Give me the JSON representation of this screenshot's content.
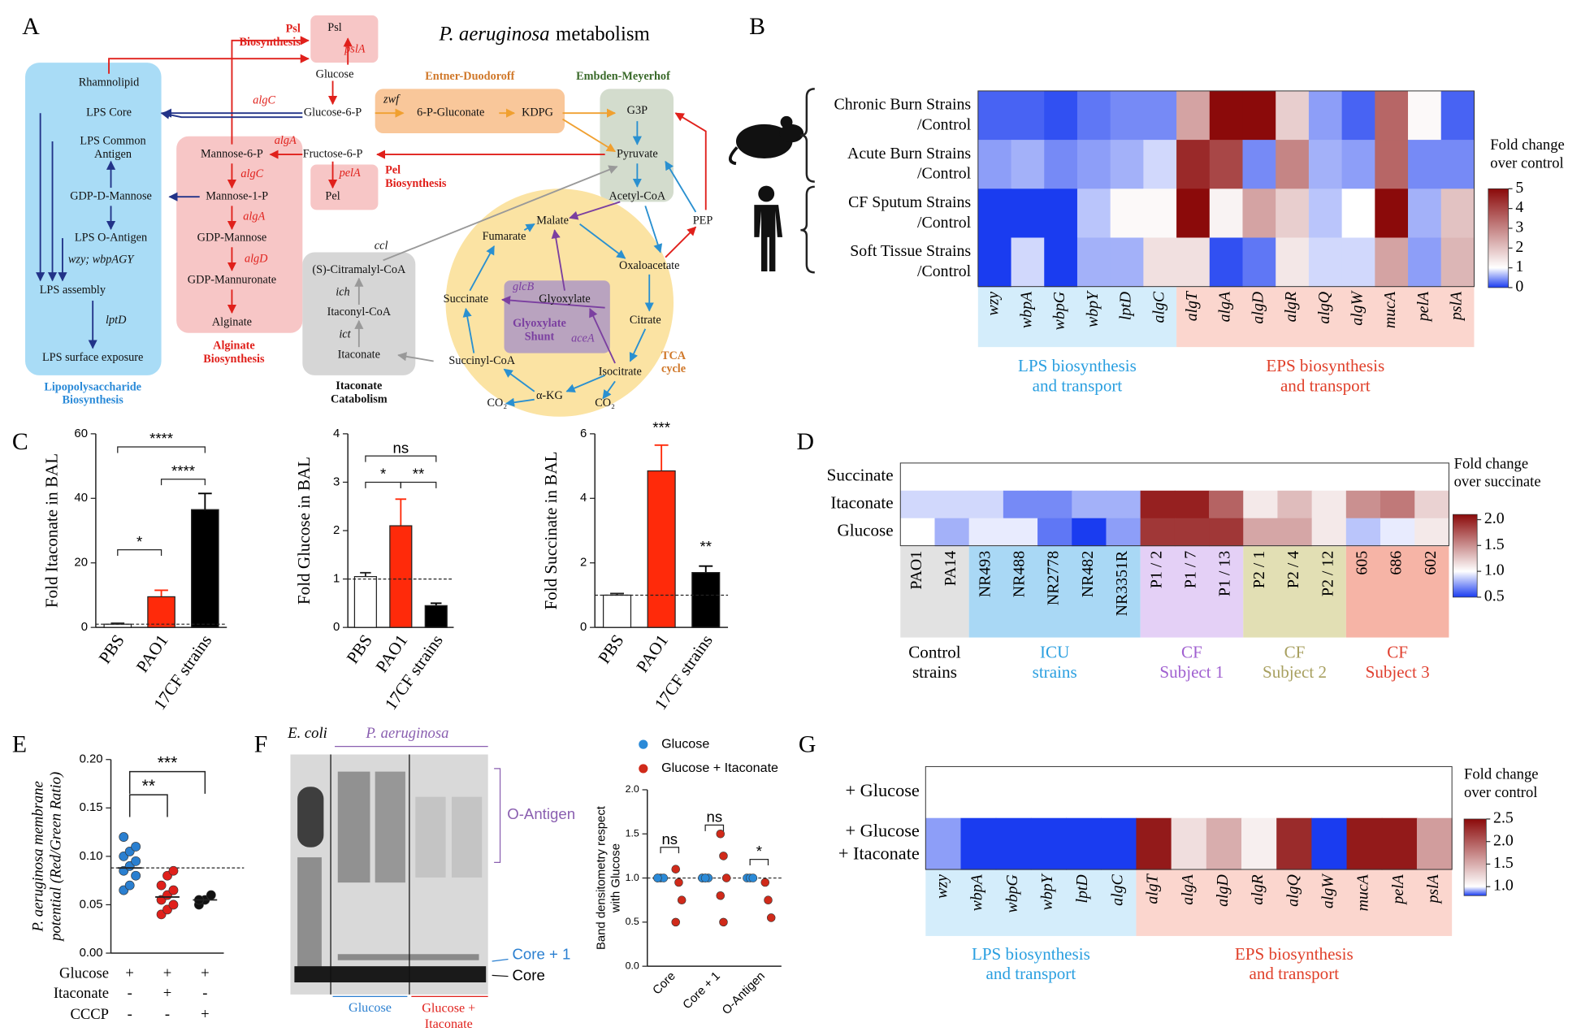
{
  "panel_labels": [
    "A",
    "B",
    "C",
    "D",
    "E",
    "F",
    "G"
  ],
  "diagram": {
    "title": [
      "P. aeruginosa",
      "metabolism"
    ],
    "labels": [
      "Psl",
      "pslA",
      [
        "Psl",
        "Biosynthesis"
      ],
      "Glucose",
      "Glucose-6-P",
      "zwf",
      "6-P-Gluconate",
      "KDPG",
      "G3P",
      "Pyruvate",
      "Acetyl-CoA",
      "PEP",
      "Fructose-6-P",
      "pelA",
      "Pel",
      [
        "Pel",
        "Biosynthesis"
      ],
      "Entner-Duodoroff",
      "Embden-Meyerhof",
      "algC",
      "algA",
      "Rhamnolipid",
      "LPS Core",
      [
        "LPS Common",
        "Antigen"
      ],
      "GDP-D-Mannose",
      "LPS O-Antigen",
      "wzy; wbpAGY",
      "LPS assembly",
      "lptD",
      "LPS surface exposure",
      [
        "Lipopolysaccharide",
        "Biosynthesis"
      ],
      "Mannose-6-P",
      "algC",
      "Mannose-1-P",
      "algA",
      "GDP-Mannose",
      "algD",
      "GDP-Mannuronate",
      "Alginate",
      [
        "Alginate",
        "Biosynthesis"
      ],
      "Malate",
      "Fumarate",
      "Oxaloacetate",
      "Succinate",
      "glcB",
      "Glyoxylate",
      [
        "Glyoxylate",
        "Shunt"
      ],
      "aceA",
      "Citrate",
      "Isocitrate",
      "Succinyl-CoA",
      "α-KG",
      "CO₂",
      "CO₂",
      [
        "TCA",
        "cycle"
      ],
      "ccl",
      "(S)-Citramalyl-CoA",
      "ich",
      "Itaconyl-CoA",
      "ict",
      "Itaconate",
      [
        "Itaconate",
        "Catabolism"
      ]
    ]
  },
  "gel": {
    "title_left": "E. coli",
    "title_right": "P. aeruginosa",
    "band_labels": [
      "O-Antigen",
      "Core + 1",
      "Core"
    ],
    "lanes": [
      "Glucose",
      [
        "Glucose +",
        "Itaconate"
      ]
    ]
  },
  "chart_data": [
    {
      "type": "heatmap",
      "rows": [
        [
          "Chronic Burn Strains",
          "/Control"
        ],
        [
          "Acute Burn Strains",
          "/Control"
        ],
        [
          "CF Sputum Strains",
          "/Control"
        ],
        [
          "Soft Tissue Strains",
          "/Control"
        ]
      ],
      "groups": [
        {
          "name": [
            "LPS biosynthesis",
            "and transport"
          ],
          "color": "#d4edfb",
          "text_color": "#2a9fe0",
          "columns": [
            "wzy",
            "wbpA",
            "wbpG",
            "wbpY",
            "lptD",
            "algC"
          ]
        },
        {
          "name": [
            "EPS biosynthesis",
            "and transport"
          ],
          "color": "#fbd6ce",
          "text_color": "#e0402a",
          "columns": [
            "algT",
            "algA",
            "algD",
            "algR",
            "algQ",
            "algW",
            "mucA",
            "pelA",
            "pslA"
          ]
        }
      ],
      "italic_labels": true,
      "values": [
        [
          0.2,
          0.2,
          0.1,
          0.3,
          0.4,
          0.4,
          2.5,
          5,
          5,
          1.8,
          0.5,
          0.2,
          3.5,
          1.1,
          0.2
        ],
        [
          0.5,
          0.6,
          0.4,
          0.5,
          0.6,
          0.8,
          4.5,
          4,
          0.4,
          3,
          0.6,
          0.5,
          3.5,
          0.4,
          0.4
        ],
        [
          0,
          0,
          0,
          0.7,
          1.1,
          1.1,
          5,
          1.2,
          2.5,
          1.8,
          0.7,
          1,
          5,
          0.6,
          2
        ],
        [
          0,
          0.8,
          0,
          0.6,
          0.6,
          1.5,
          1.5,
          0.1,
          0.3,
          1.4,
          0.8,
          0.8,
          2.5,
          0.5,
          2.2
        ]
      ],
      "colormap": [
        "#1a3cf0",
        "#ffffff",
        "#8b0a0a"
      ],
      "clim": [
        0,
        5
      ],
      "center": 1,
      "colorbar_ticks": [
        0,
        1,
        2,
        3,
        4,
        5
      ],
      "colorbar_title": [
        "Fold change",
        "over control"
      ]
    },
    {
      "type": "bar",
      "ylabel": "Fold Itaconate in BAL",
      "categories": [
        "PBS",
        "PAO1",
        "17CF strains"
      ],
      "values": [
        1,
        9.5,
        36.5
      ],
      "errors": [
        0.3,
        2,
        5
      ],
      "colors": [
        "#ffffff",
        "#ff2a0a",
        "#000000"
      ],
      "ylim": [
        0,
        60
      ],
      "yticks": [
        0,
        20,
        40,
        60
      ],
      "hline": 1,
      "annotations": [
        "*",
        "****",
        "****"
      ]
    },
    {
      "type": "bar",
      "ylabel": "Fold Glucose in BAL",
      "categories": [
        "PBS",
        "PAO1",
        "17CF strains"
      ],
      "values": [
        1.05,
        2.1,
        0.45
      ],
      "errors": [
        0.08,
        0.55,
        0.05
      ],
      "colors": [
        "#ffffff",
        "#ff2a0a",
        "#000000"
      ],
      "ylim": [
        0,
        4
      ],
      "yticks": [
        0,
        1,
        2,
        3,
        4
      ],
      "hline": 1,
      "annotations": [
        "ns",
        "*",
        "**"
      ]
    },
    {
      "type": "bar",
      "ylabel": "Fold Succinate in BAL",
      "categories": [
        "PBS",
        "PAO1",
        "17CF strains"
      ],
      "values": [
        1,
        4.85,
        1.7
      ],
      "errors": [
        0.05,
        0.8,
        0.2
      ],
      "colors": [
        "#ffffff",
        "#ff2a0a",
        "#000000"
      ],
      "ylim": [
        0,
        6
      ],
      "yticks": [
        0,
        2,
        4,
        6
      ],
      "hline": 1,
      "annotations": [
        "***",
        "**"
      ]
    },
    {
      "type": "heatmap",
      "rows": [
        "Succinate",
        "Itaconate",
        "Glucose"
      ],
      "groups": [
        {
          "name": [
            "Control",
            "strains"
          ],
          "color": "#e2e2e2",
          "text_color": "#000000",
          "columns": [
            "PAO1",
            "PA14"
          ]
        },
        {
          "name": [
            "ICU",
            "strains"
          ],
          "color": "#a9d8f5",
          "text_color": "#2a9fe0",
          "columns": [
            "NR493",
            "NR488",
            "NR2778",
            "NR482",
            "NR3351R"
          ]
        },
        {
          "name": [
            "CF",
            "Subject 1"
          ],
          "color": "#e4d0f6",
          "text_color": "#a060d0",
          "columns": [
            "P1 / 2",
            "P1 / 7",
            "P1 / 13"
          ]
        },
        {
          "name": [
            "CF",
            "Subject 2"
          ],
          "color": "#e2dfb4",
          "text_color": "#a8a060",
          "columns": [
            "P2 / 1",
            "P2 / 4",
            "P2 / 12"
          ]
        },
        {
          "name": [
            "CF",
            "Subject 3"
          ],
          "color": "#f6b4a6",
          "text_color": "#e04030",
          "columns": [
            "605",
            "686",
            "602"
          ]
        }
      ],
      "italic_labels": false,
      "values": [
        [
          1,
          1,
          1,
          1,
          1,
          1,
          1,
          1,
          1,
          1,
          1,
          1,
          1,
          1,
          1,
          1
        ],
        [
          0.9,
          0.9,
          0.9,
          0.7,
          0.7,
          0.8,
          0.8,
          2,
          2,
          1.7,
          1.1,
          1.3,
          1.1,
          1.5,
          1.6,
          1.2
        ],
        [
          1,
          0.8,
          0.95,
          0.95,
          0.65,
          0.5,
          0.75,
          1.9,
          1.9,
          1.9,
          1.4,
          1.4,
          1.1,
          0.85,
          0.95,
          1.1
        ]
      ],
      "colormap": [
        "#1a3cf0",
        "#ffffff",
        "#8b0a0a"
      ],
      "clim": [
        0.5,
        2.1
      ],
      "center": 1,
      "colorbar_ticks": [
        0.5,
        {
          "value": 1,
          "label": "1.0"
        },
        1.5,
        {
          "value": 2,
          "label": "2.0"
        }
      ],
      "colorbar_title": [
        "Fold change",
        "over succinate"
      ]
    },
    {
      "type": "strip",
      "ylabel": [
        "P. aeruginosa membrane",
        "potential (Red/Green Ratio)"
      ],
      "ylim": [
        0,
        0.2
      ],
      "yticks": [
        {
          "value": 0,
          "label": "0.00"
        },
        {
          "value": 0.05,
          "label": "0.05"
        },
        {
          "value": 0.1,
          "label": "0.10"
        },
        {
          "value": 0.15,
          "label": "0.15"
        },
        {
          "value": 0.2,
          "label": "0.20"
        }
      ],
      "groups": [
        {
          "color": "#2a7fd0",
          "values": [
            0.065,
            0.07,
            0.08,
            0.085,
            0.09,
            0.095,
            0.1,
            0.105,
            0.11,
            0.12
          ],
          "mean": 0.088
        },
        {
          "color": "#e0201b",
          "values": [
            0.04,
            0.045,
            0.05,
            0.055,
            0.06,
            0.065,
            0.07,
            0.08,
            0.085
          ],
          "mean": 0.058
        },
        {
          "color": "#111111",
          "values": [
            0.05,
            0.055,
            0.06,
            0.055
          ],
          "mean": 0.055
        }
      ],
      "hline": 0.088,
      "conditions": [
        {
          "name": "Glucose",
          "values": [
            "+",
            "+",
            "+"
          ]
        },
        {
          "name": "Itaconate",
          "values": [
            "-",
            "+",
            "-"
          ]
        },
        {
          "name": "CCCP",
          "values": [
            "-",
            "-",
            "+"
          ]
        }
      ],
      "annotations": [
        "**",
        "***"
      ]
    },
    {
      "type": "dotplot",
      "ylabel": [
        "Band densitometry respect",
        "with Glucose"
      ],
      "categories": [
        "Core",
        "Core + 1",
        "O-Antigen"
      ],
      "series": [
        {
          "name": "Glucose",
          "color": "#2a8ad8",
          "values": [
            [
              1,
              1,
              1,
              1
            ],
            [
              1,
              1,
              1,
              1,
              1
            ],
            [
              1,
              1,
              1
            ]
          ]
        },
        {
          "name": "Glucose + Itaconate",
          "color": "#d02a1a",
          "values": [
            [
              1.1,
              0.95,
              0.75,
              0.5
            ],
            [
              1.5,
              1.25,
              1,
              0.8,
              0.5
            ],
            [
              0.95,
              0.75,
              0.55
            ]
          ]
        }
      ],
      "ylim": [
        0,
        2
      ],
      "yticks": [
        {
          "value": 0,
          "label": "0.0"
        },
        {
          "value": 0.5,
          "label": "0.5"
        },
        {
          "value": 1,
          "label": "1.0"
        },
        {
          "value": 1.5,
          "label": "1.5"
        },
        {
          "value": 2,
          "label": "2.0"
        }
      ],
      "hline": 1,
      "annotations": [
        "ns",
        "ns",
        "*"
      ]
    },
    {
      "type": "heatmap",
      "rows": [
        "+ Glucose",
        [
          "+ Glucose",
          "+ Itaconate"
        ]
      ],
      "groups": [
        {
          "name": [
            "LPS biosynthesis",
            "and transport"
          ],
          "color": "#d4edfb",
          "text_color": "#2a9fe0",
          "columns": [
            "wzy",
            "wbpA",
            "wbpG",
            "wbpY",
            "lptD",
            "algC"
          ]
        },
        {
          "name": [
            "EPS biosynthesis",
            "and transport"
          ],
          "color": "#fbd6ce",
          "text_color": "#e0402a",
          "columns": [
            "algT",
            "algA",
            "algD",
            "algR",
            "algQ",
            "algW",
            "mucA",
            "pelA",
            "pslA"
          ]
        }
      ],
      "italic_labels": true,
      "values": [
        [
          1,
          1,
          1,
          1,
          1,
          1,
          1,
          1,
          1,
          1,
          1,
          1,
          1,
          1,
          1
        ],
        [
          0.9,
          0.6,
          0.8,
          0.3,
          0.7,
          0.65,
          2.4,
          1.2,
          1.5,
          1.1,
          2.3,
          0.4,
          2.4,
          2.4,
          1.6
        ]
      ],
      "colormap": [
        "#1a3cf0",
        "#ffffff",
        "#8b0a0a"
      ],
      "clim": [
        0.8,
        2.5
      ],
      "center": 1,
      "colorbar_ticks": [
        {
          "value": 1,
          "label": "1.0"
        },
        1.5,
        {
          "value": 2,
          "label": "2.0"
        },
        2.5
      ],
      "colorbar_title": [
        "Fold change",
        "over control"
      ]
    }
  ]
}
